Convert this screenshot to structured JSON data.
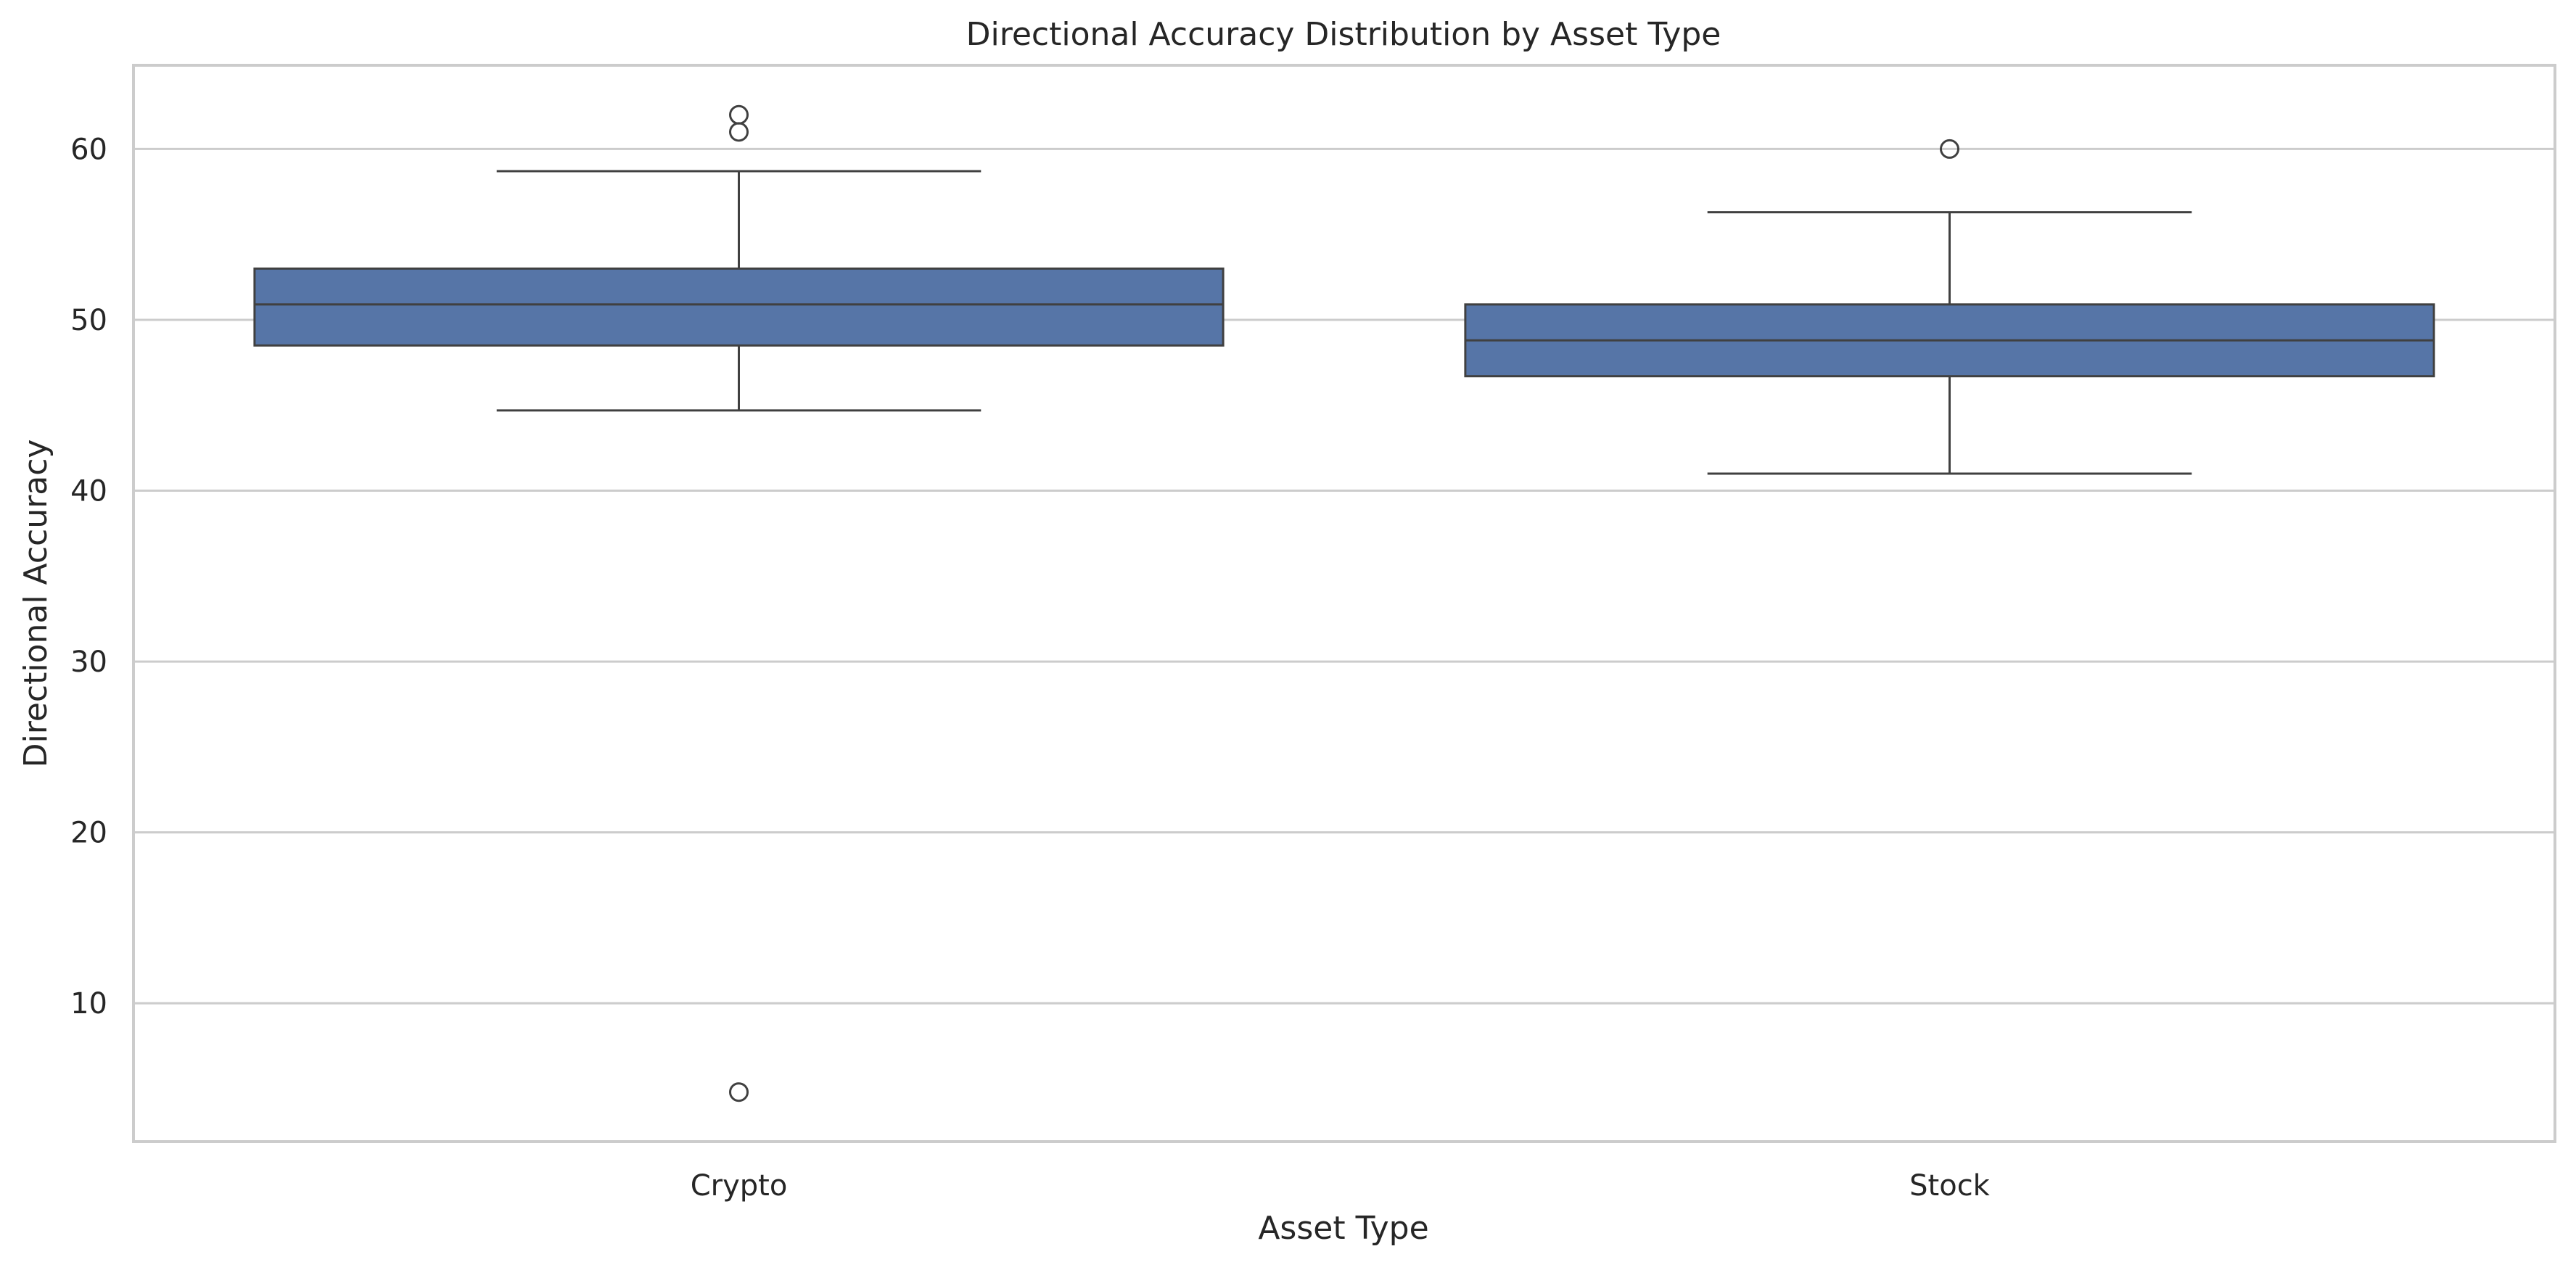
{
  "chart_data": {
    "type": "box",
    "title": "Directional Accuracy Distribution by Asset Type",
    "xlabel": "Asset Type",
    "ylabel": "Directional Accuracy",
    "ylim": [
      1.9,
      64.9
    ],
    "yticks": [
      10,
      20,
      30,
      40,
      50,
      60
    ],
    "grid": true,
    "legend": "none",
    "colors": {
      "box_fill": "#5675a7",
      "line": "#404040",
      "grid": "#cccccc",
      "frame": "#cccccc"
    },
    "categories": [
      "Crypto",
      "Stock"
    ],
    "boxes": [
      {
        "category": "Crypto",
        "whisker_low": 44.7,
        "q1": 48.5,
        "median": 50.9,
        "q3": 53.0,
        "whisker_high": 58.7,
        "outliers": [
          62.0,
          61.0,
          4.8
        ]
      },
      {
        "category": "Stock",
        "whisker_low": 41.0,
        "q1": 46.7,
        "median": 48.8,
        "q3": 50.9,
        "whisker_high": 56.3,
        "outliers": [
          60.0
        ]
      }
    ]
  }
}
